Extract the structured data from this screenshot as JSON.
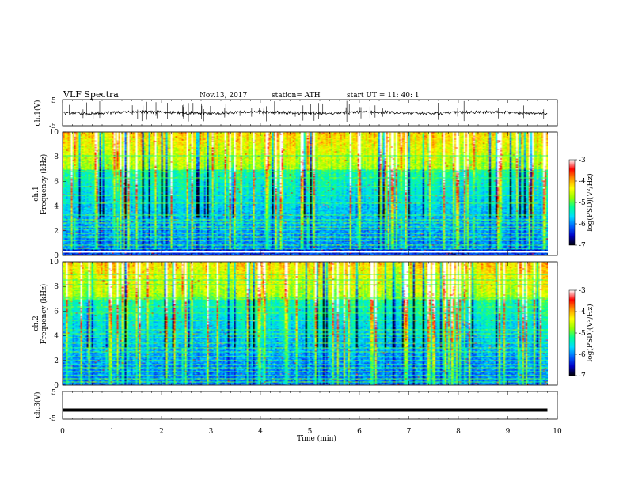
{
  "header": {
    "title": "VLF  Spectra",
    "date": "Nov.13, 2017",
    "station": "station= ATH",
    "start": "start  UT  =    11: 40: 1"
  },
  "chart_data": [
    {
      "type": "line",
      "title": "",
      "xlabel": "",
      "ylabel": "ch.1(V)",
      "xlim": [
        0,
        10
      ],
      "ylim": [
        -5,
        5
      ],
      "yticks": [
        "5",
        "-5"
      ],
      "series": [
        {
          "baseline": 0,
          "trace_color": "#000000"
        }
      ]
    },
    {
      "type": "heatmap",
      "title": "",
      "xlabel": "",
      "ylabel_line1": "ch.1",
      "ylabel_line2": "Frequency  (kHz)",
      "xlim": [
        0,
        10
      ],
      "ylim": [
        0,
        10
      ],
      "yticks": [
        "0",
        "2",
        "4",
        "6",
        "8",
        "10"
      ],
      "data_extent_x": 9.8,
      "colorbar": {
        "label": "log(PSD)(V²/Hz)",
        "range": [
          -7,
          -3
        ],
        "ticks": [
          "-3",
          "-4",
          "-5",
          "-6",
          "-7"
        ],
        "colors": [
          "#000000",
          "#0000c8",
          "#0064ff",
          "#00dcff",
          "#00ff96",
          "#96ff00",
          "#ffff00",
          "#ff9600",
          "#ff0000",
          "#ffffff"
        ]
      }
    },
    {
      "type": "heatmap",
      "title": "",
      "xlabel": "",
      "ylabel_line1": "ch.2",
      "ylabel_line2": "Frequency  (kHz)",
      "xlim": [
        0,
        10
      ],
      "ylim": [
        0,
        10
      ],
      "yticks": [
        "0",
        "2",
        "4",
        "6",
        "8",
        "10"
      ],
      "data_extent_x": 9.8,
      "colorbar": {
        "label": "log(PSD)(V²/Hz)",
        "range": [
          -7,
          -3
        ],
        "ticks": [
          "-3",
          "-4",
          "-5",
          "-6",
          "-7"
        ],
        "colors": [
          "#000000",
          "#0000c8",
          "#0064ff",
          "#00dcff",
          "#00ff96",
          "#96ff00",
          "#ffff00",
          "#ff9600",
          "#ff0000",
          "#ffffff"
        ]
      }
    },
    {
      "type": "line",
      "title": "",
      "xlabel": "Time  (min)",
      "ylabel": "ch.3(V)",
      "xlim": [
        0,
        10
      ],
      "ylim": [
        -5,
        5
      ],
      "yticks": [
        "5",
        "-5"
      ],
      "xticks": [
        "0",
        "1",
        "2",
        "3",
        "4",
        "5",
        "6",
        "7",
        "8",
        "9",
        "10"
      ],
      "series": [
        {
          "baseline": -1.7,
          "trace_color": "#000000"
        }
      ]
    }
  ]
}
